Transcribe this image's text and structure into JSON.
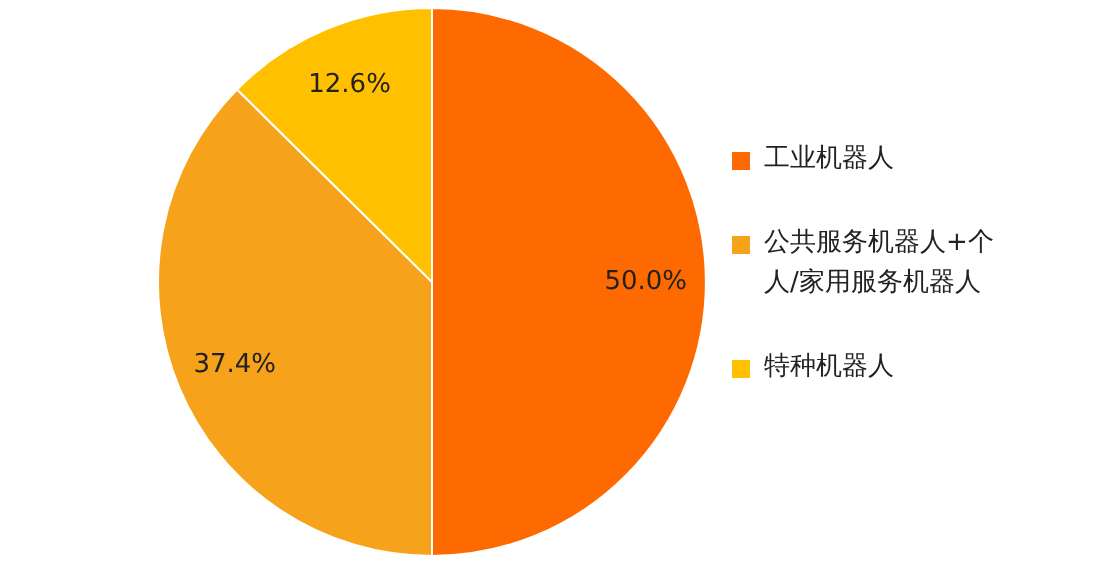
{
  "chart_data": {
    "type": "pie",
    "categories": [
      "工业机器人",
      "公共服务机器人+个人/家用服务机器人",
      "特种机器人"
    ],
    "values": [
      50.0,
      37.4,
      12.6
    ],
    "colors": [
      "#ff6a00",
      "#f7a21b",
      "#ffc000"
    ],
    "value_labels": [
      "50.0%",
      "37.4%",
      "12.6%"
    ],
    "legend": "right"
  }
}
